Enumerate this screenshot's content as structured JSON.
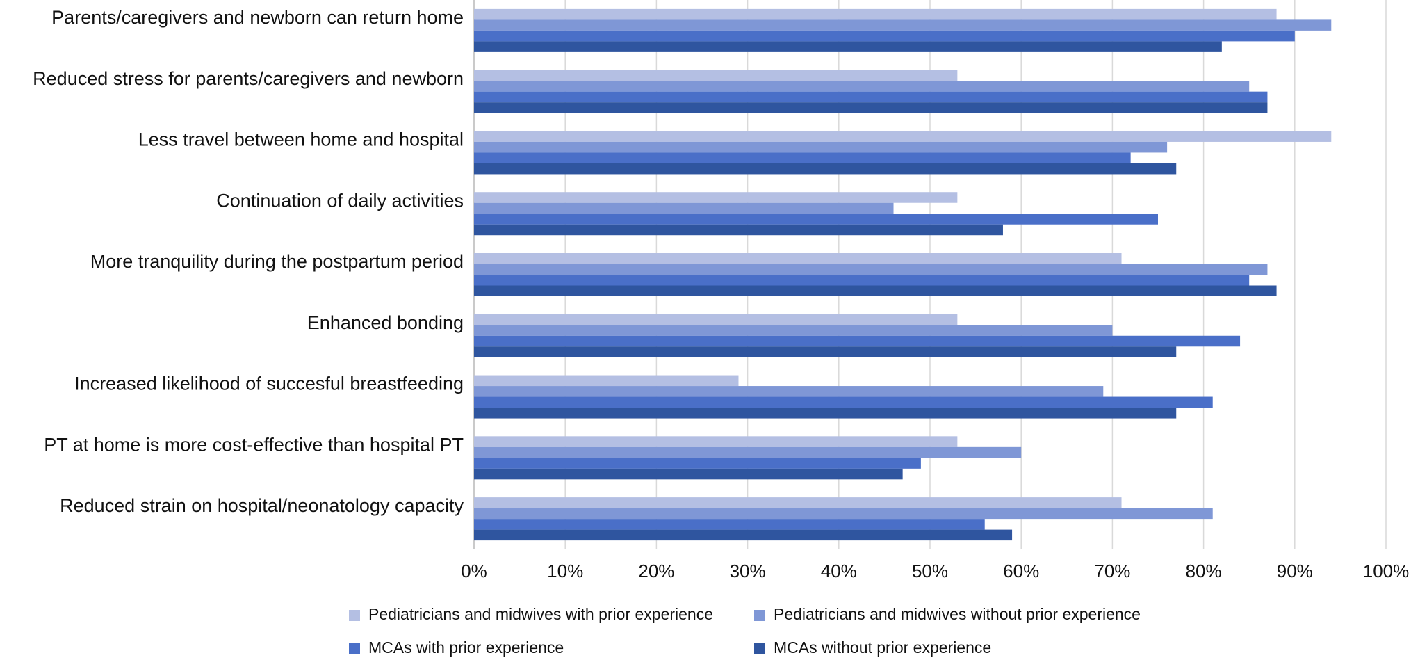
{
  "chart_data": {
    "type": "hbar",
    "categories": [
      "Parents/caregivers and newborn can return home",
      "Reduced stress for parents/caregivers and newborn",
      "Less travel between home and hospital",
      "Continuation of daily activities",
      "More tranquility during the postpartum period",
      "Enhanced bonding",
      "Increased likelihood of succesful breastfeeding",
      "PT at home is more cost-effective than hospital PT",
      "Reduced strain on hospital/neonatology capacity"
    ],
    "series": [
      {
        "name": "Pediatricians and midwives with prior experience",
        "color": "#b4bfe3",
        "values": [
          88,
          53,
          94,
          53,
          71,
          53,
          29,
          53,
          71
        ]
      },
      {
        "name": "Pediatricians and midwives without prior experience",
        "color": "#7f97d6",
        "values": [
          94,
          85,
          76,
          46,
          87,
          70,
          69,
          60,
          81
        ]
      },
      {
        "name": "MCAs with prior experience",
        "color": "#4a6fc8",
        "values": [
          90,
          87,
          72,
          75,
          85,
          84,
          81,
          49,
          56
        ]
      },
      {
        "name": "MCAs without prior experience",
        "color": "#2f559f",
        "values": [
          82,
          87,
          77,
          58,
          88,
          77,
          77,
          47,
          59
        ]
      }
    ],
    "xlim": [
      0,
      100
    ],
    "xticks": [
      {
        "value": 0,
        "label": "0%"
      },
      {
        "value": 10,
        "label": "10%"
      },
      {
        "value": 20,
        "label": "20%"
      },
      {
        "value": 30,
        "label": "30%"
      },
      {
        "value": 40,
        "label": "40%"
      },
      {
        "value": 50,
        "label": "50%"
      },
      {
        "value": 60,
        "label": "60%"
      },
      {
        "value": 70,
        "label": "70%"
      },
      {
        "value": 80,
        "label": "80%"
      },
      {
        "value": 90,
        "label": "90%"
      },
      {
        "value": 100,
        "label": "100%"
      }
    ],
    "grid": true
  }
}
